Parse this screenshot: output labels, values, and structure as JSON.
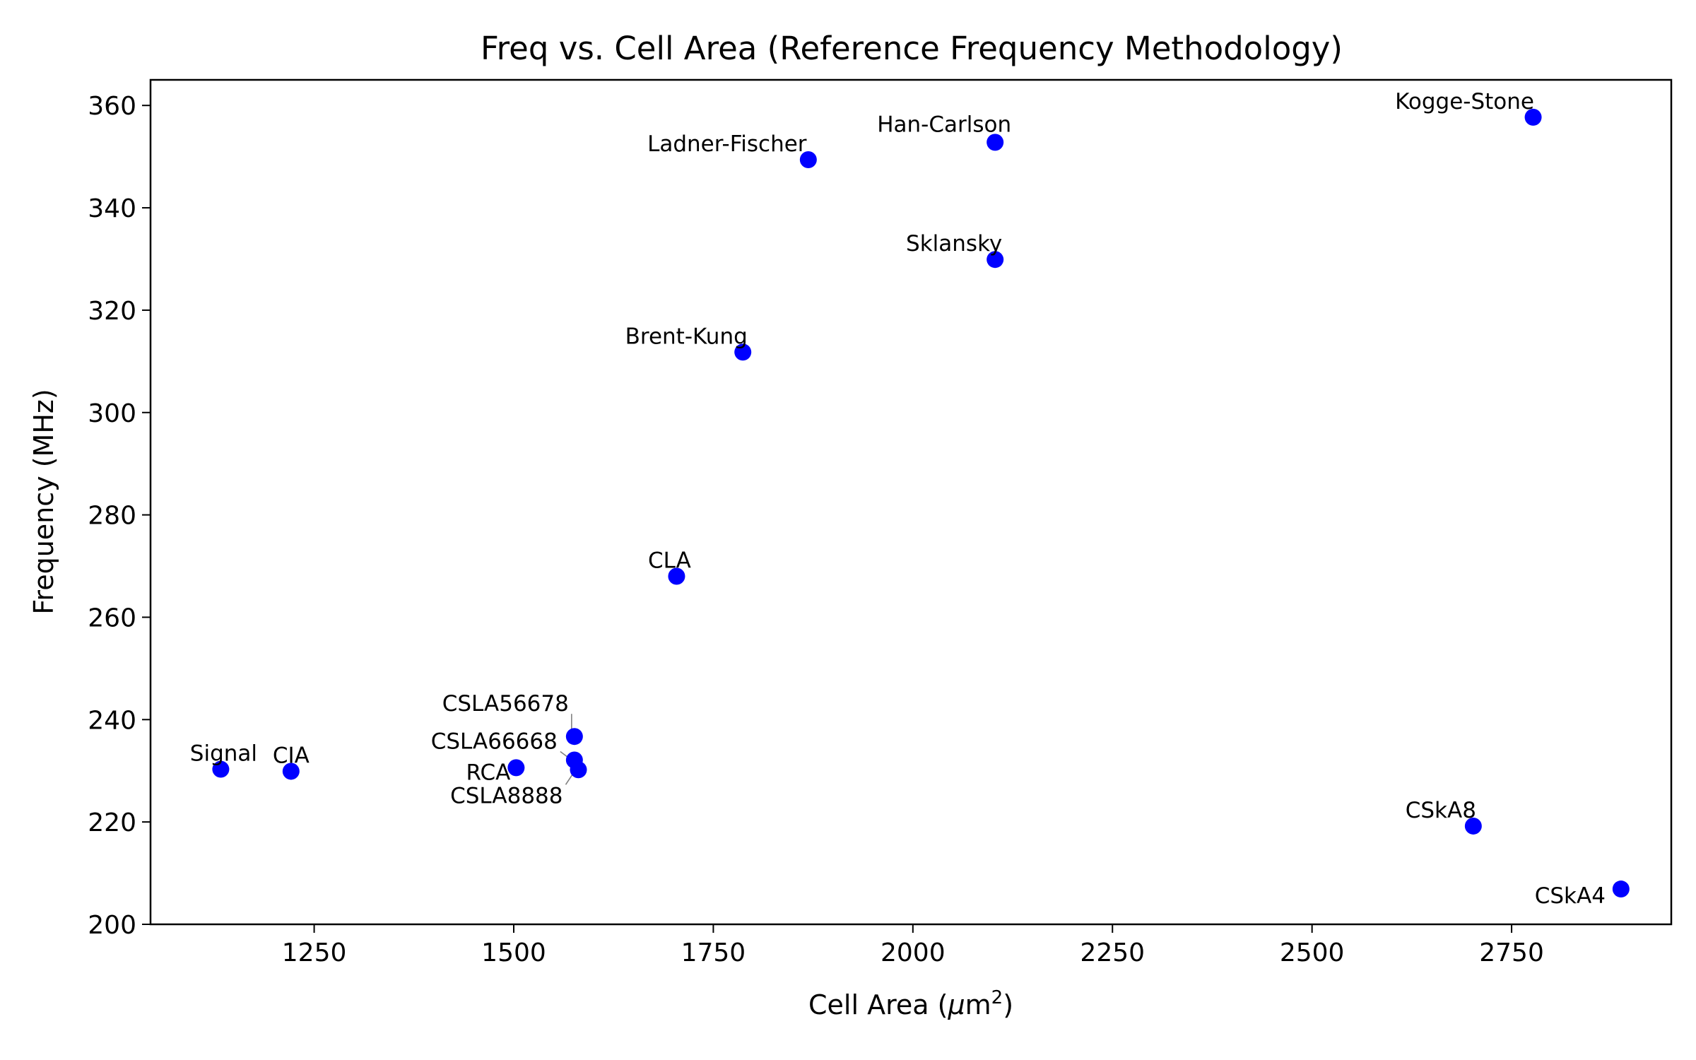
{
  "chart_data": {
    "type": "scatter",
    "title": "Freq vs. Cell Area (Reference Frequency Methodology)",
    "xlabel": "Cell Area (μm²)",
    "xlabel_base": "Cell Area (",
    "xlabel_unit": "μm",
    "xlabel_sup": "2",
    "xlabel_close": ")",
    "ylabel": "Frequency (MHz)",
    "xlim": [
      1045,
      2950
    ],
    "ylim": [
      200,
      365
    ],
    "xticks": [
      1250,
      1500,
      1750,
      2000,
      2250,
      2500,
      2750
    ],
    "yticks": [
      200,
      220,
      240,
      260,
      280,
      300,
      320,
      340,
      360
    ],
    "grid": false,
    "marker_color": "#0000ff",
    "points": [
      {
        "name": "Signal",
        "x": 1133,
        "y": 230.3
      },
      {
        "name": "CIA",
        "x": 1221,
        "y": 229.9
      },
      {
        "name": "RCA",
        "x": 1503,
        "y": 230.6
      },
      {
        "name": "CSLA56678",
        "x": 1576,
        "y": 236.7
      },
      {
        "name": "CSLA66668",
        "x": 1576,
        "y": 232.1
      },
      {
        "name": "CSLA8888",
        "x": 1581,
        "y": 230.2
      },
      {
        "name": "CLA",
        "x": 1704,
        "y": 268.0
      },
      {
        "name": "Brent-Kung",
        "x": 1787,
        "y": 311.8
      },
      {
        "name": "Ladner-Fischer",
        "x": 1869,
        "y": 349.4
      },
      {
        "name": "Han-Carlson",
        "x": 2103,
        "y": 352.8
      },
      {
        "name": "Sklansky",
        "x": 2103,
        "y": 329.9
      },
      {
        "name": "Kogge-Stone",
        "x": 2777,
        "y": 357.7
      },
      {
        "name": "CSkA8",
        "x": 2702,
        "y": 219.2
      },
      {
        "name": "CSkA4",
        "x": 2887,
        "y": 206.9
      }
    ]
  }
}
